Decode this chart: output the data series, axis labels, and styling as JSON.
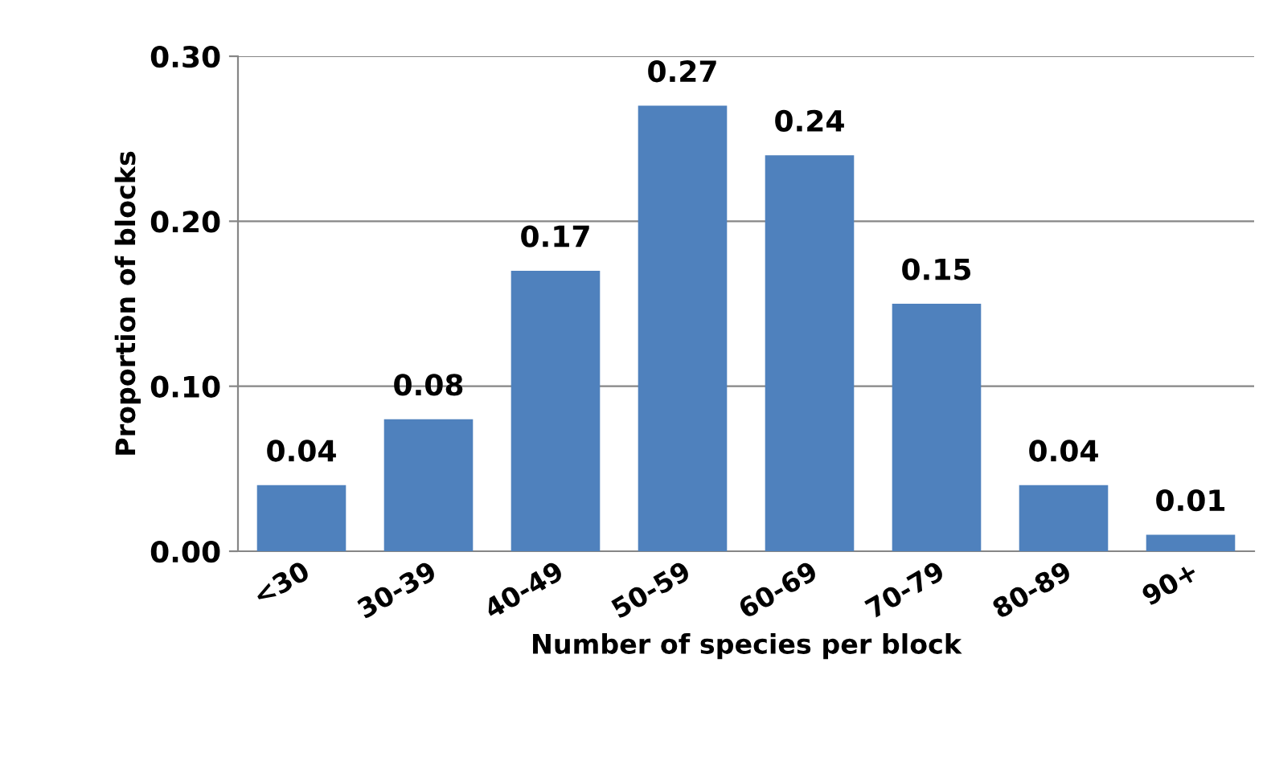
{
  "chart_data": {
    "type": "bar",
    "xlabel": "Number of species per block",
    "ylabel": "Proportion of blocks",
    "categories": [
      "<30",
      "30-39",
      "40-49",
      "50-59",
      "60-69",
      "70-79",
      "80-89",
      "90+"
    ],
    "values": [
      0.04,
      0.08,
      0.17,
      0.27,
      0.24,
      0.15,
      0.04,
      0.01
    ],
    "color": "#4f81bd",
    "data_labels": true,
    "ylim": [
      0,
      0.3
    ],
    "yticks": [
      {
        "value": 0,
        "label": "0.00"
      },
      {
        "value": 0.1,
        "label": "0.10"
      },
      {
        "value": 0.2,
        "label": "0.20"
      },
      {
        "value": 0.3,
        "label": "0.30"
      }
    ],
    "grid": "y",
    "legend": false
  }
}
